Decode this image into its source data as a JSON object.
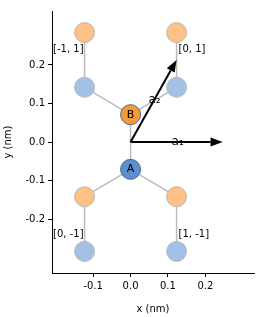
{
  "chart_data": {
    "type": "scatter",
    "xlabel": "x (nm)",
    "ylabel": "y (nm)",
    "xlim": [
      -0.21,
      0.33
    ],
    "xticks": [
      -0.1,
      {
        "value": 0,
        "label": "0.0"
      },
      0.1,
      0.2
    ],
    "ylim": [
      -0.34,
      0.34
    ],
    "yticks": [
      -0.2,
      -0.1,
      {
        "value": 0,
        "label": "0.0"
      },
      0.1,
      0.2
    ],
    "grid": false,
    "points": [
      {
        "x": 0,
        "y": -0.071,
        "color": "#5b8fd0",
        "label": "A"
      },
      {
        "x": 0,
        "y": 0.071,
        "color": "#f5993a",
        "label": "B"
      },
      {
        "x": -0.123,
        "y": 0.142,
        "color": "#a3c1e7"
      },
      {
        "x": 0.123,
        "y": 0.142,
        "color": "#a3c1e7"
      },
      {
        "x": -0.123,
        "y": 0.284,
        "color": "#fdc187"
      },
      {
        "x": 0.123,
        "y": 0.284,
        "color": "#fdc187"
      },
      {
        "x": -0.123,
        "y": -0.142,
        "color": "#fdc187"
      },
      {
        "x": 0.123,
        "y": -0.142,
        "color": "#fdc187"
      },
      {
        "x": -0.123,
        "y": -0.284,
        "color": "#a3c1e7"
      },
      {
        "x": 0.123,
        "y": -0.284,
        "color": "#a3c1e7"
      }
    ],
    "bonds": [
      [
        0,
        1
      ],
      [
        1,
        2
      ],
      [
        1,
        3
      ],
      [
        2,
        4
      ],
      [
        3,
        5
      ],
      [
        0,
        6
      ],
      [
        0,
        7
      ],
      [
        6,
        8
      ],
      [
        7,
        9
      ]
    ],
    "vectors": [
      {
        "label": "a₁",
        "x0": 0,
        "y0": 0,
        "x": 0.246,
        "y": 0,
        "label_x": 0.126,
        "label_y": 0
      },
      {
        "label": "a₂",
        "x0": 0,
        "y0": 0,
        "x": 0.123,
        "y": 0.213,
        "label_x": 0.064,
        "label_y": 0.11
      }
    ],
    "annotations": [
      {
        "text": "[-1, 1]",
        "x": -0.123,
        "y": 0.24
      },
      {
        "text": "[0, 1]",
        "x": 0.123,
        "y": 0.24
      },
      {
        "text": "[0, -1]",
        "x": -0.123,
        "y": -0.24
      },
      {
        "text": "[1, -1]",
        "x": 0.123,
        "y": -0.24
      }
    ]
  }
}
